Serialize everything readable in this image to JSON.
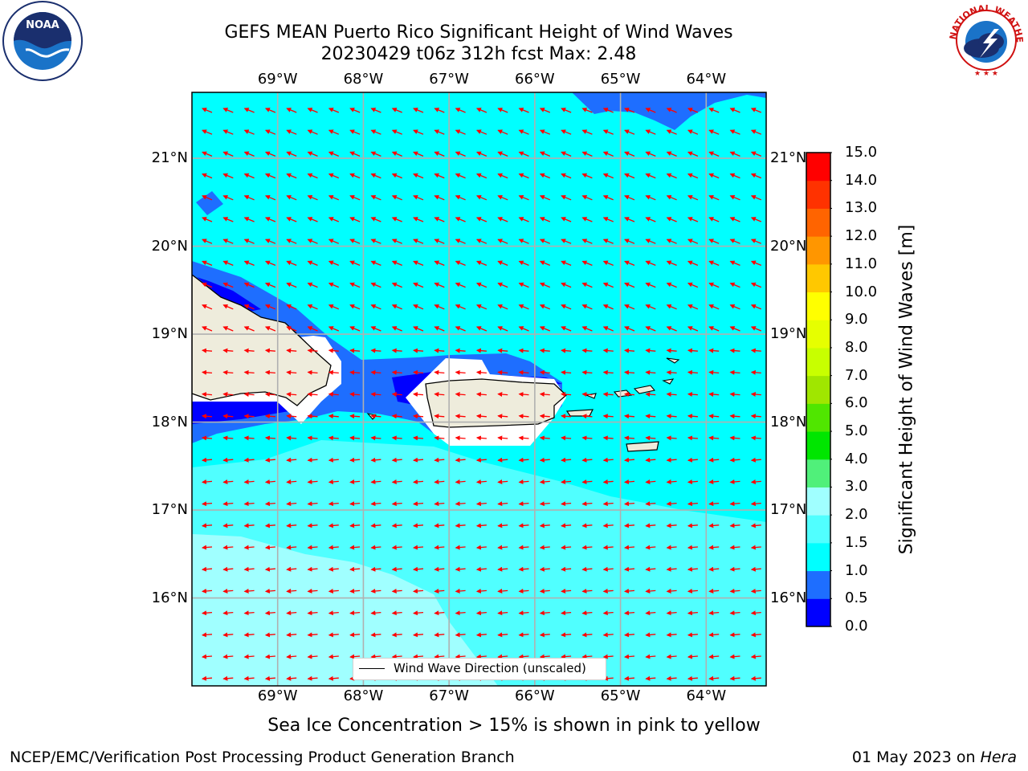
{
  "title": {
    "line1": "GEFS MEAN Puerto Rico Significant Height of Wind Waves",
    "line2": "20230429 t06z 312h fcst   Max: 2.48"
  },
  "map": {
    "lon_labels": [
      "69°W",
      "68°W",
      "67°W",
      "66°W",
      "65°W",
      "64°W"
    ],
    "lat_labels": [
      "21°N",
      "20°N",
      "19°N",
      "18°N",
      "17°N",
      "16°N"
    ],
    "lon_range": [
      -70.0,
      -63.3
    ],
    "lat_range": [
      15.0,
      21.75
    ],
    "legend_label": "Wind Wave Direction (unscaled)",
    "arrow_color": "#ff0000",
    "land_color": "#eeecdc",
    "grid_color": "#b0b0b0"
  },
  "colorbar": {
    "label": "Significant Height of Wind Waves [m]",
    "tick_labels": [
      "0.0",
      "0.5",
      "1.0",
      "1.5",
      "2.0",
      "3.0",
      "4.0",
      "5.0",
      "6.0",
      "7.0",
      "8.0",
      "9.0",
      "10.0",
      "11.0",
      "12.0",
      "13.0",
      "14.0",
      "15.0"
    ],
    "colors": [
      "#0000ff",
      "#1e6eff",
      "#00ffff",
      "#50ffff",
      "#a0ffff",
      "#50f07a",
      "#00e600",
      "#50e600",
      "#a0e600",
      "#c8ff00",
      "#e6ff00",
      "#ffff00",
      "#ffc800",
      "#ff9600",
      "#ff6400",
      "#ff3200",
      "#ff0000"
    ]
  },
  "caption": "Sea Ice Concentration > 15% is shown in pink to yellow",
  "credits": {
    "left": "NCEP/EMC/Verification Post Processing Product Generation Branch",
    "right_prefix": "01 May 2023 on ",
    "right_host": "Hera"
  },
  "logos": {
    "noaa_text": "NOAA",
    "nws_text": "NATIONAL WEATHER SERVICE"
  }
}
